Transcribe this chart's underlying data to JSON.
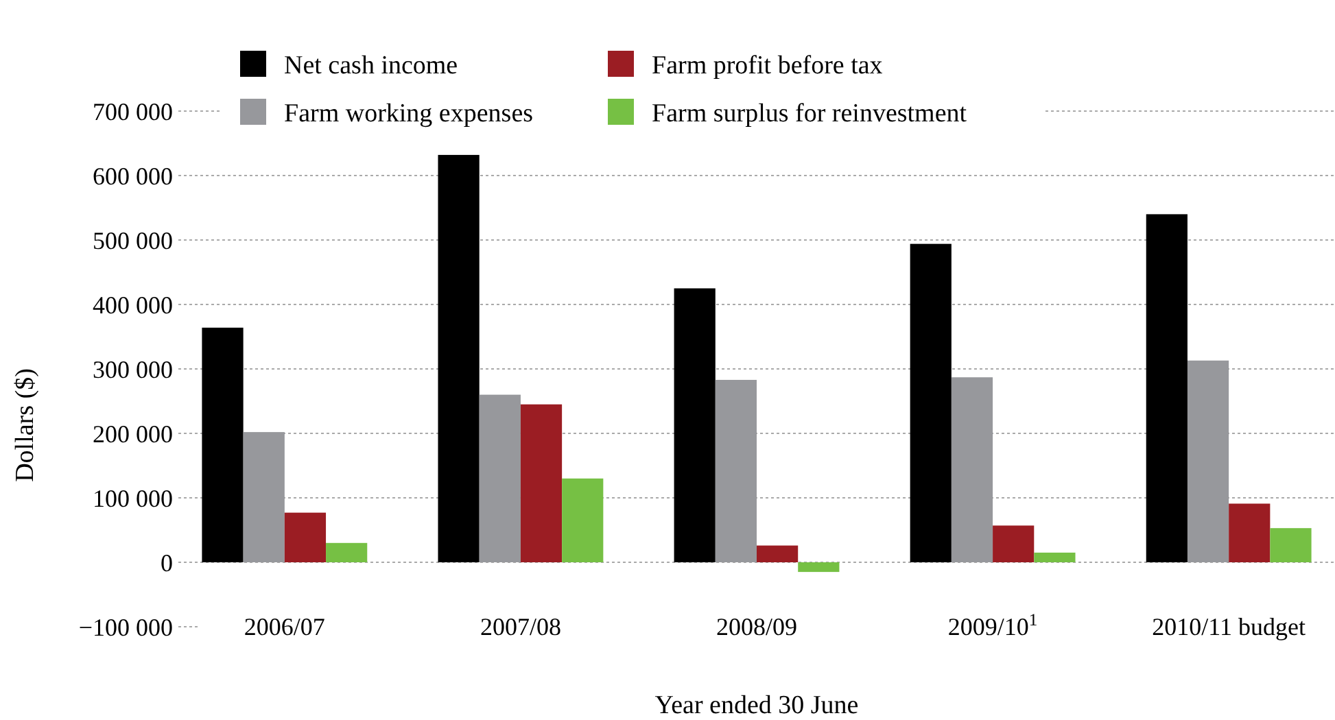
{
  "chart_data": {
    "type": "bar",
    "xlabel": "Year ended 30 June",
    "ylabel": "Dollars ($)",
    "categories": [
      "2006/07",
      "2007/08",
      "2008/09",
      "2009/10$^{1}$",
      "2010/11 budget"
    ],
    "series": [
      {
        "name": "Net cash income",
        "color": "#000000",
        "values": [
          364000,
          632000,
          425000,
          494000,
          540000
        ]
      },
      {
        "name": "Farm working expenses",
        "color": "#97989c",
        "values": [
          202000,
          260000,
          283000,
          287000,
          313000
        ]
      },
      {
        "name": "Farm profit before tax",
        "color": "#9b1d23",
        "values": [
          77000,
          245000,
          26000,
          57000,
          91000
        ]
      },
      {
        "name": "Farm surplus for reinvestment",
        "color": "#76c044",
        "values": [
          30000,
          130000,
          -15000,
          15000,
          53000
        ]
      }
    ],
    "ylim": [
      -100000,
      700000
    ],
    "yticks": [
      {
        "value": -100000,
        "label": "−100 000"
      },
      {
        "value": 0,
        "label": "0"
      },
      {
        "value": 100000,
        "label": "100 000"
      },
      {
        "value": 200000,
        "label": "200 000"
      },
      {
        "value": 300000,
        "label": "300 000"
      },
      {
        "value": 400000,
        "label": "400 000"
      },
      {
        "value": 500000,
        "label": "500 000"
      },
      {
        "value": 600000,
        "label": "600 000"
      },
      {
        "value": 700000,
        "label": "700 000"
      }
    ],
    "grid": "y",
    "legend": "top left"
  }
}
